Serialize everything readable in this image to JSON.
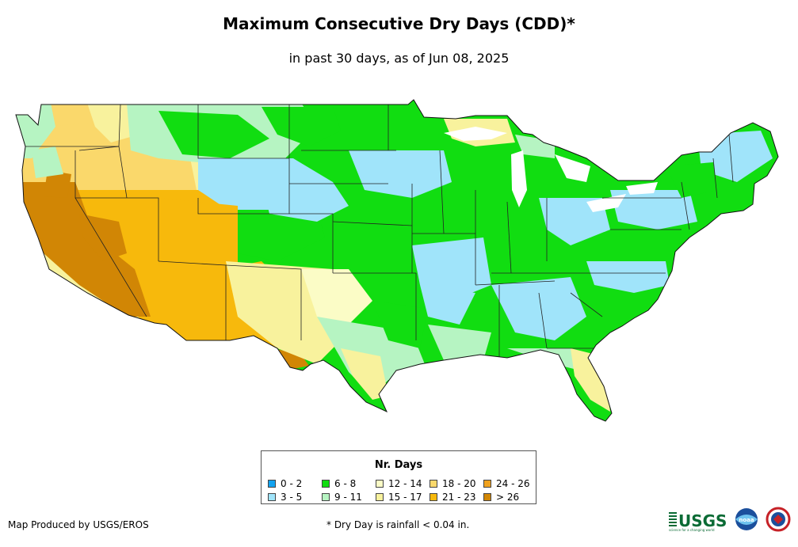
{
  "title": "Maximum Consecutive Dry Days (CDD)*",
  "subtitle": "in past 30 days, as of Jun 08, 2025",
  "legend": {
    "title": "Nr. Days",
    "items": [
      {
        "label": "0 - 2",
        "color": "#12a3f0"
      },
      {
        "label": "3 - 5",
        "color": "#a0e4fa"
      },
      {
        "label": "6 - 8",
        "color": "#11dd11"
      },
      {
        "label": "9 - 11",
        "color": "#b6f4c2"
      },
      {
        "label": "12 - 14",
        "color": "#fbfcc6"
      },
      {
        "label": "15 - 17",
        "color": "#f8f29d"
      },
      {
        "label": "18 - 20",
        "color": "#fad86b"
      },
      {
        "label": "21 - 23",
        "color": "#f7b90c"
      },
      {
        "label": "24 - 26",
        "color": "#f0a21e"
      },
      {
        "label": "> 26",
        "color": "#d18605"
      }
    ]
  },
  "credit": "Map Produced by USGS/EROS",
  "footnote": "* Dry Day is rainfall < 0.04 in.",
  "logos": {
    "usgs_text": "USGS",
    "usgs_tagline": "science for a changing world",
    "noaa_text": "noaa"
  }
}
